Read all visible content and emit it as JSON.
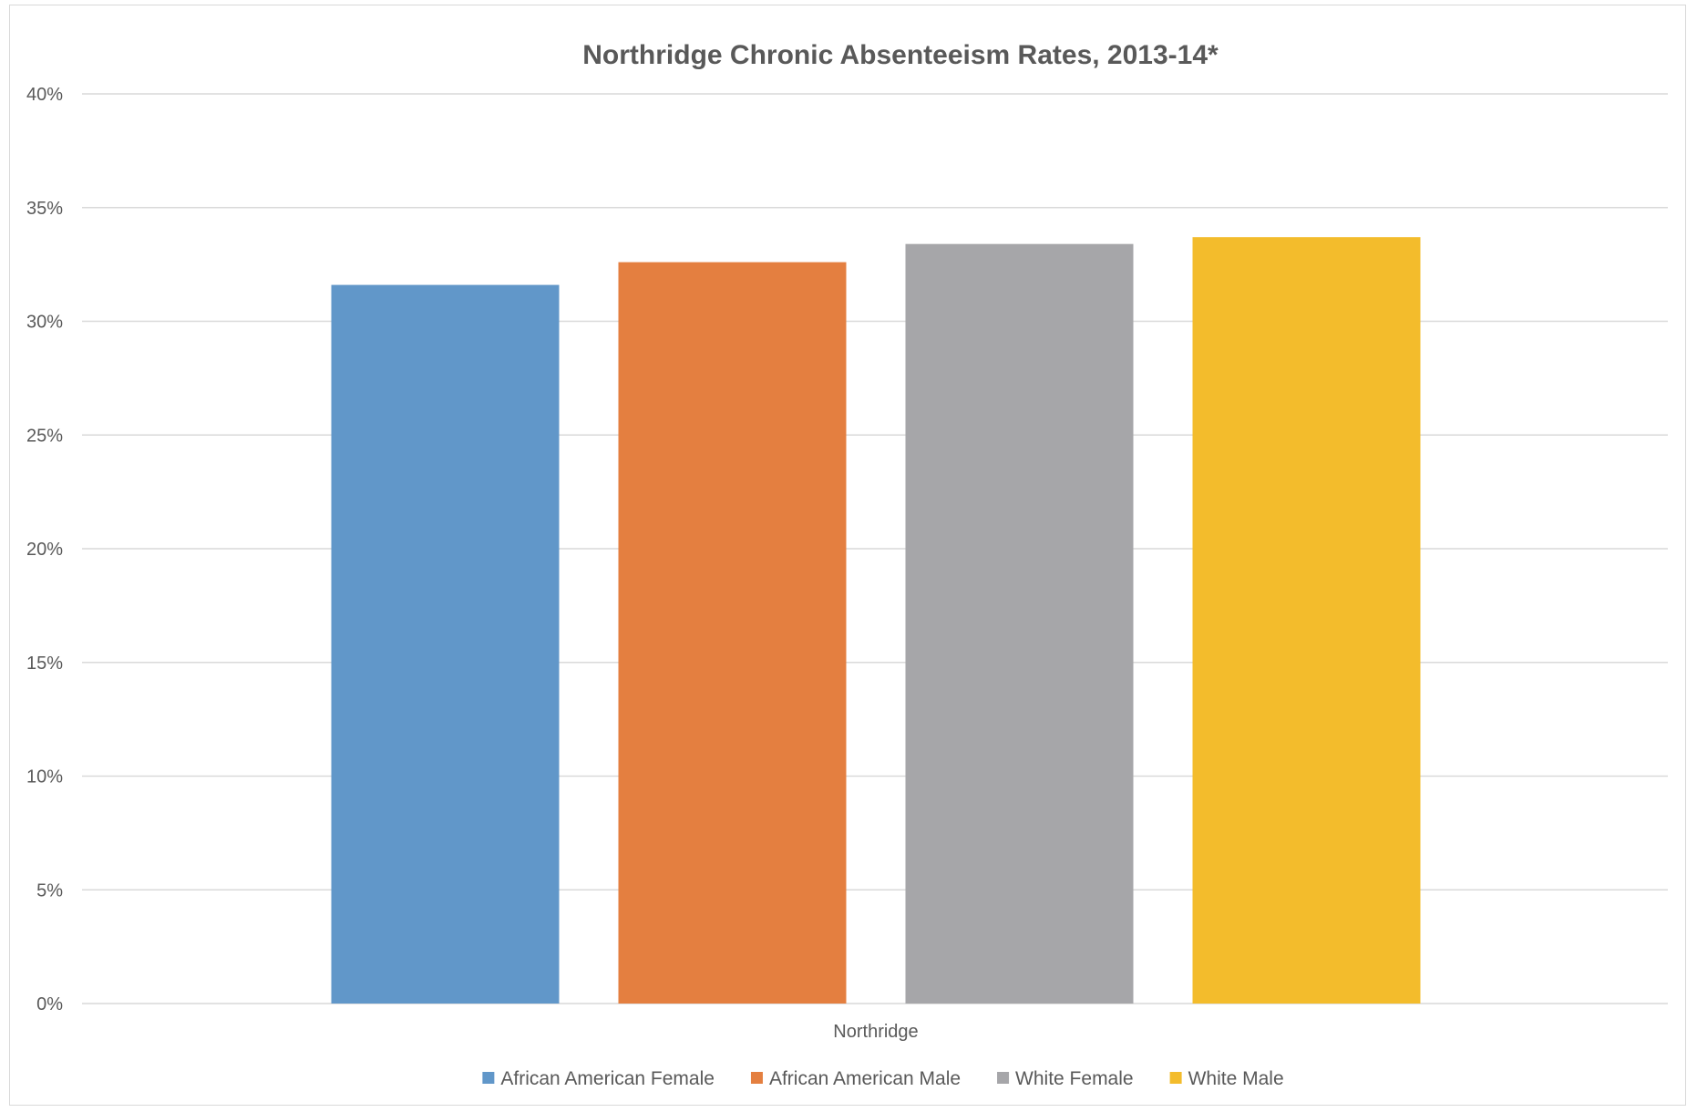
{
  "chart_data": {
    "type": "bar",
    "title": "Northridge Chronic Absenteeism Rates, 2013-14*",
    "xlabel": "",
    "ylabel": "",
    "categories": [
      "Northridge"
    ],
    "ylim": [
      0,
      40
    ],
    "yticks": [
      "0%",
      "5%",
      "10%",
      "15%",
      "20%",
      "25%",
      "30%",
      "35%",
      "40%"
    ],
    "grid": true,
    "legend_position": "bottom",
    "series": [
      {
        "name": "African American Female",
        "values": [
          31.6
        ],
        "color": "#6197c9"
      },
      {
        "name": "African American  Male",
        "values": [
          32.6
        ],
        "color": "#e47f40"
      },
      {
        "name": "White Female",
        "values": [
          33.4
        ],
        "color": "#a6a6a9"
      },
      {
        "name": "White Male",
        "values": [
          33.7
        ],
        "color": "#f3bc2c"
      }
    ]
  }
}
